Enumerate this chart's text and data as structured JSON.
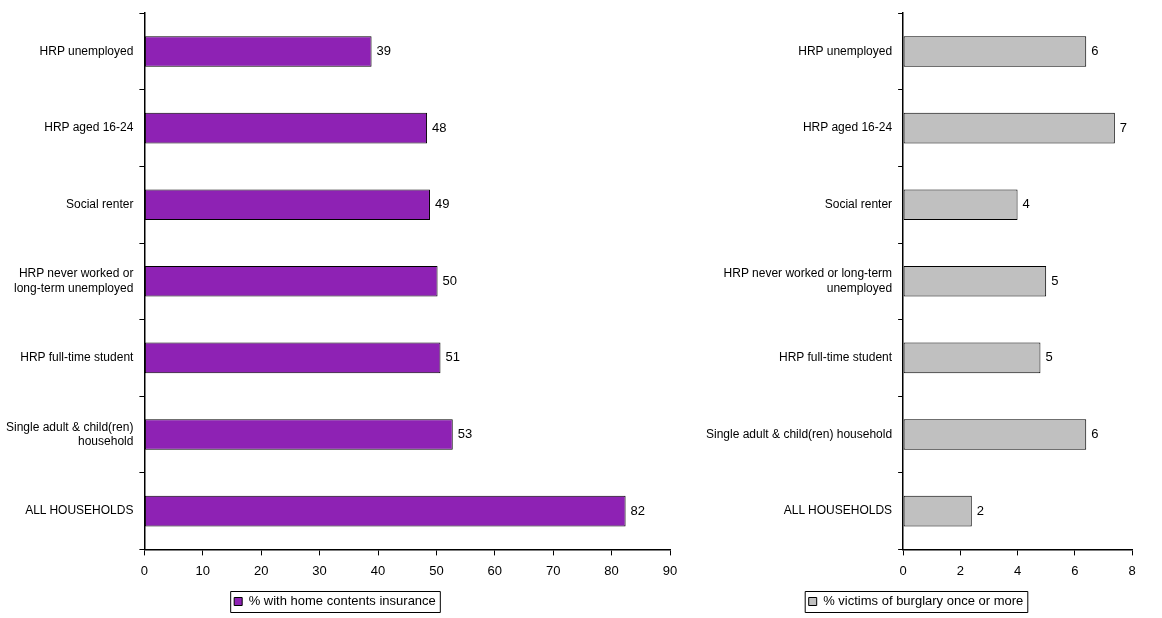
{
  "chart_data": [
    {
      "type": "bar",
      "orientation": "horizontal",
      "categories": [
        "HRP unemployed",
        "HRP aged 16-24",
        "Social renter",
        "HRP never worked or long-term unemployed",
        "HRP full-time student",
        "Single adult & child(ren) household",
        "ALL HOUSEHOLDS"
      ],
      "series": [
        {
          "name": "% with home contents insurance",
          "color": "#8e22b4",
          "values": [
            38.9,
            48.4,
            48.9,
            50.2,
            50.7,
            52.8,
            82.4
          ],
          "value_labels": [
            "39",
            "48",
            "49",
            "50",
            "51",
            "53",
            "82"
          ]
        }
      ],
      "xlim": [
        0,
        90
      ],
      "xticks": [
        0,
        10,
        20,
        30,
        40,
        50,
        60,
        70,
        80,
        90
      ],
      "grid": false,
      "legend": "bottom"
    },
    {
      "type": "bar",
      "orientation": "horizontal",
      "categories": [
        "HRP unemployed",
        "HRP aged 16-24",
        "Social renter",
        "HRP never worked or long-term unemployed",
        "HRP full-time student",
        "Single adult & child(ren) household",
        "ALL HOUSEHOLDS"
      ],
      "series": [
        {
          "name": "% victims of burglary once or more",
          "color": "#c0c0c0",
          "values": [
            6.4,
            7.4,
            4.0,
            5.0,
            4.8,
            6.4,
            2.4
          ],
          "value_labels": [
            "6",
            "7",
            "4",
            "5",
            "5",
            "6",
            "2"
          ]
        }
      ],
      "xlim": [
        0,
        8
      ],
      "xticks": [
        0,
        2,
        4,
        6,
        8
      ],
      "grid": false,
      "legend": "bottom"
    }
  ]
}
